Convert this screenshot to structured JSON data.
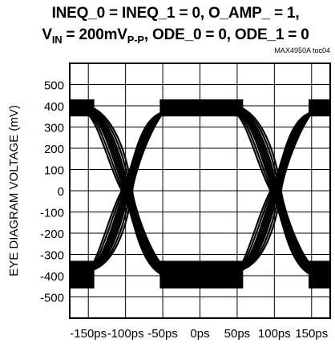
{
  "chart_data": {
    "type": "line",
    "title_line1": "INEQ_0 = INEQ_1 = 0, O_AMP_ = 1,",
    "title_line2": {
      "v": "V",
      "v_sub": "IN",
      "eq": " = 200mV",
      "pp": "P-P",
      "rest": ", ODE_0 = 0, ODE_1 = 0"
    },
    "figure_id": "MAX4950A toc04",
    "xlabel": "",
    "ylabel": "EYE DIAGRAM VOLTAGE (mV)",
    "xlim": [
      -175,
      175
    ],
    "ylim": [
      -600,
      600
    ],
    "x_ticks": [
      -150,
      -100,
      -50,
      0,
      50,
      100,
      150
    ],
    "x_tick_labels": [
      "-150ps",
      "-100ps",
      "-50ps",
      "0ps",
      "50ps",
      "100ps",
      "150ps"
    ],
    "y_ticks": [
      500,
      400,
      300,
      200,
      100,
      0,
      -100,
      -200,
      -300,
      -400,
      -500
    ],
    "y_tick_labels": [
      "500",
      "400",
      "300",
      "200",
      "100",
      "0",
      "-100",
      "-200",
      "-300",
      "-400",
      "-500"
    ],
    "grid": true,
    "eye": {
      "high_level_mv": [
        350,
        430
      ],
      "low_level_mv": [
        -460,
        -330
      ],
      "crossing_points_ps": [
        -98,
        100
      ],
      "crossing_level_mv": 0,
      "period_ps": 200
    },
    "color": "#000000"
  }
}
